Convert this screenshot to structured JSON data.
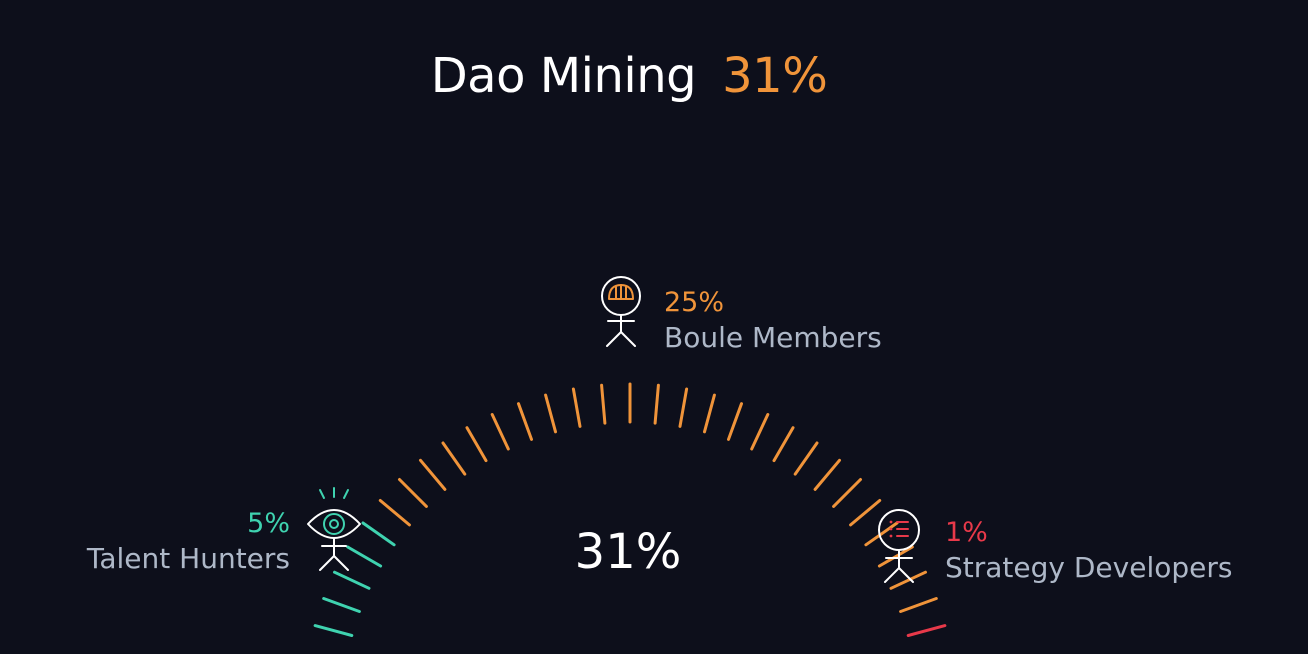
{
  "title": {
    "text": "Dao Mining",
    "value": "31%"
  },
  "center_value": "31%",
  "colors": {
    "background": "#0d0f1b",
    "boule": "#f0943a",
    "talent": "#3fd3b0",
    "strategy": "#e8394a",
    "label": "#aeb8c8"
  },
  "icons": {
    "boule": "helmet-person-icon",
    "talent": "eye-person-icon",
    "strategy": "list-person-icon"
  },
  "chart_data": {
    "type": "gauge",
    "title": "Dao Mining",
    "total": "31%",
    "series": [
      {
        "name": "Talent Hunters",
        "label": "5%",
        "value": 5,
        "color": "#3fd3b0"
      },
      {
        "name": "Boule Members",
        "label": "25%",
        "value": 25,
        "color": "#f0943a"
      },
      {
        "name": "Strategy Developers",
        "label": "1%",
        "value": 1,
        "color": "#e8394a"
      }
    ]
  }
}
